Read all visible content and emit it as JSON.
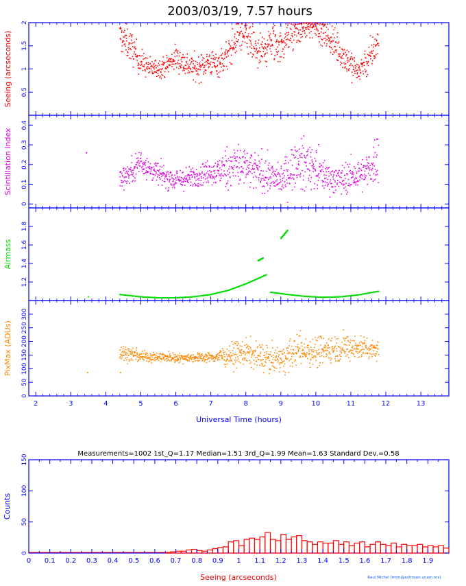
{
  "title": "2003/03/19, 7.57 hours",
  "credit": "Raul Michel (rmm@astrosen.unam.mx)",
  "colors": {
    "axis": "#0000ff",
    "seeing": "#ff0000",
    "scintillation": "#e000e0",
    "airmass": "#00dd00",
    "pixmax": "#ff8800",
    "histogram": "#ff0000"
  },
  "chart_data": [
    {
      "id": "seeing",
      "type": "scatter",
      "ylabel": "Seeing (arcseconds)",
      "ylim": [
        0,
        2
      ],
      "yticks": [
        0.5,
        1,
        1.5,
        2
      ],
      "xlim": [
        1.8,
        13.8
      ],
      "x_note": "Universal Time (hours), shared axis",
      "envelope": [
        {
          "x": 4.4,
          "y": 1.7,
          "s": 0.25
        },
        {
          "x": 4.7,
          "y": 1.5,
          "s": 0.25
        },
        {
          "x": 5.0,
          "y": 1.15,
          "s": 0.2
        },
        {
          "x": 5.3,
          "y": 1.0,
          "s": 0.15
        },
        {
          "x": 5.7,
          "y": 1.05,
          "s": 0.15
        },
        {
          "x": 6.0,
          "y": 1.25,
          "s": 0.2
        },
        {
          "x": 6.3,
          "y": 1.1,
          "s": 0.2
        },
        {
          "x": 6.6,
          "y": 1.0,
          "s": 0.2
        },
        {
          "x": 6.9,
          "y": 1.15,
          "s": 0.2
        },
        {
          "x": 7.2,
          "y": 1.1,
          "s": 0.2
        },
        {
          "x": 7.5,
          "y": 1.3,
          "s": 0.25
        },
        {
          "x": 7.8,
          "y": 1.75,
          "s": 0.25
        },
        {
          "x": 8.1,
          "y": 1.6,
          "s": 0.3
        },
        {
          "x": 8.4,
          "y": 1.3,
          "s": 0.3
        },
        {
          "x": 8.7,
          "y": 1.55,
          "s": 0.3
        },
        {
          "x": 9.0,
          "y": 1.5,
          "s": 0.3
        },
        {
          "x": 9.2,
          "y": 1.7,
          "s": 0.25
        },
        {
          "x": 9.6,
          "y": 1.85,
          "s": 0.2
        },
        {
          "x": 10.0,
          "y": 1.95,
          "s": 0.15
        },
        {
          "x": 10.3,
          "y": 1.75,
          "s": 0.25
        },
        {
          "x": 10.6,
          "y": 1.45,
          "s": 0.25
        },
        {
          "x": 10.9,
          "y": 1.2,
          "s": 0.25
        },
        {
          "x": 11.2,
          "y": 0.95,
          "s": 0.2
        },
        {
          "x": 11.5,
          "y": 1.2,
          "s": 0.25
        },
        {
          "x": 11.8,
          "y": 1.6,
          "s": 0.25
        }
      ],
      "n_points": 1002
    },
    {
      "id": "scintillation",
      "type": "scatter",
      "ylabel": "Scintillation Index",
      "ylim": [
        -0.02,
        0.45
      ],
      "yticks": [
        0,
        0.1,
        0.2,
        0.3,
        0.4
      ],
      "xlim": [
        1.8,
        13.8
      ],
      "isolated_points": [
        {
          "x": 3.45,
          "y": 0.26
        }
      ],
      "envelope": [
        {
          "x": 4.4,
          "y": 0.13,
          "s": 0.04
        },
        {
          "x": 4.7,
          "y": 0.16,
          "s": 0.04
        },
        {
          "x": 5.0,
          "y": 0.22,
          "s": 0.06
        },
        {
          "x": 5.3,
          "y": 0.17,
          "s": 0.04
        },
        {
          "x": 5.7,
          "y": 0.14,
          "s": 0.04
        },
        {
          "x": 6.0,
          "y": 0.12,
          "s": 0.04
        },
        {
          "x": 6.4,
          "y": 0.13,
          "s": 0.04
        },
        {
          "x": 6.8,
          "y": 0.16,
          "s": 0.04
        },
        {
          "x": 7.2,
          "y": 0.16,
          "s": 0.05
        },
        {
          "x": 7.5,
          "y": 0.19,
          "s": 0.08
        },
        {
          "x": 7.8,
          "y": 0.2,
          "s": 0.09
        },
        {
          "x": 8.1,
          "y": 0.17,
          "s": 0.07
        },
        {
          "x": 8.4,
          "y": 0.16,
          "s": 0.07
        },
        {
          "x": 8.7,
          "y": 0.14,
          "s": 0.06
        },
        {
          "x": 9.0,
          "y": 0.12,
          "s": 0.05
        },
        {
          "x": 9.4,
          "y": 0.2,
          "s": 0.09
        },
        {
          "x": 9.8,
          "y": 0.2,
          "s": 0.09
        },
        {
          "x": 10.2,
          "y": 0.15,
          "s": 0.06
        },
        {
          "x": 10.6,
          "y": 0.12,
          "s": 0.05
        },
        {
          "x": 11.0,
          "y": 0.14,
          "s": 0.06
        },
        {
          "x": 11.4,
          "y": 0.15,
          "s": 0.06
        },
        {
          "x": 11.8,
          "y": 0.25,
          "s": 0.1
        }
      ],
      "n_points": 1002
    },
    {
      "id": "airmass",
      "type": "line",
      "ylabel": "Airmass",
      "ylim": [
        1,
        2
      ],
      "yticks": [
        1.2,
        1.4,
        1.6,
        1.8
      ],
      "xlim": [
        1.8,
        13.8
      ],
      "isolated_points": [
        {
          "x": 3.5,
          "y": 1.04
        }
      ],
      "segments": [
        {
          "x": [
            4.4,
            5.0,
            5.5,
            6.0,
            6.5,
            7.0,
            7.5,
            8.0,
            8.6
          ],
          "y": [
            1.065,
            1.04,
            1.03,
            1.03,
            1.04,
            1.065,
            1.11,
            1.18,
            1.28
          ]
        },
        {
          "x": [
            8.35,
            8.5
          ],
          "y": [
            1.43,
            1.46
          ]
        },
        {
          "x": [
            9.0,
            9.2
          ],
          "y": [
            1.67,
            1.76
          ]
        },
        {
          "x": [
            8.7,
            9.2,
            9.7,
            10.2,
            10.7,
            11.2,
            11.8
          ],
          "y": [
            1.09,
            1.065,
            1.045,
            1.035,
            1.04,
            1.06,
            1.1
          ]
        }
      ]
    },
    {
      "id": "pixmax",
      "type": "scatter",
      "ylabel": "PixMax (ADUs)",
      "xlabel": "Universal Time (hours)",
      "ylim": [
        0,
        350
      ],
      "yticks": [
        0,
        50,
        100,
        150,
        200,
        250,
        300
      ],
      "xlim": [
        1.8,
        13.8
      ],
      "xticks": [
        2,
        3,
        4,
        5,
        6,
        7,
        8,
        9,
        10,
        11,
        12,
        13
      ],
      "isolated_points": [
        {
          "x": 3.48,
          "y": 85
        },
        {
          "x": 4.42,
          "y": 85
        }
      ],
      "envelope": [
        {
          "x": 4.4,
          "y": 160,
          "s": 25
        },
        {
          "x": 5.0,
          "y": 145,
          "s": 15
        },
        {
          "x": 6.0,
          "y": 140,
          "s": 12
        },
        {
          "x": 7.0,
          "y": 142,
          "s": 12
        },
        {
          "x": 7.6,
          "y": 150,
          "s": 30
        },
        {
          "x": 8.0,
          "y": 160,
          "s": 35
        },
        {
          "x": 8.5,
          "y": 140,
          "s": 35
        },
        {
          "x": 9.0,
          "y": 130,
          "s": 35
        },
        {
          "x": 9.5,
          "y": 170,
          "s": 40
        },
        {
          "x": 10.0,
          "y": 165,
          "s": 40
        },
        {
          "x": 10.5,
          "y": 175,
          "s": 35
        },
        {
          "x": 11.0,
          "y": 180,
          "s": 35
        },
        {
          "x": 11.5,
          "y": 175,
          "s": 30
        },
        {
          "x": 11.8,
          "y": 170,
          "s": 25
        }
      ],
      "n_points": 1002
    },
    {
      "id": "histogram",
      "type": "bar",
      "stats": "Measurements=1002   1st_Q=1.17   Median=1.51   3rd_Q=1.99   Mean=1.63   Standard Dev.=0.58",
      "xlabel": "Seeing (arcseconds)",
      "ylabel": "Counts",
      "xlim": [
        0,
        2
      ],
      "ylim": [
        0,
        150
      ],
      "yticks": [
        0,
        50,
        100,
        150
      ],
      "xticks": [
        "0",
        "0.1",
        "0.2",
        "0.3",
        "0.4",
        "0.5",
        "0.6",
        "0.7",
        "0.8",
        "0.9",
        "1",
        "1.1",
        "1.2",
        "1.3",
        "1.4",
        "1.5",
        "1.6",
        "1.7",
        "1.8",
        "1.9"
      ],
      "bin_width": 0.025,
      "bin_start": 0.65,
      "values": [
        1,
        2,
        3,
        3,
        5,
        6,
        4,
        3,
        5,
        7,
        9,
        10,
        18,
        20,
        12,
        22,
        24,
        22,
        26,
        33,
        22,
        20,
        30,
        22,
        26,
        28,
        20,
        18,
        14,
        18,
        16,
        16,
        20,
        14,
        18,
        12,
        16,
        18,
        10,
        14,
        18,
        14,
        12,
        16,
        10,
        14,
        12,
        12,
        14,
        10,
        12,
        10,
        12,
        8,
        12,
        10,
        12,
        10,
        10,
        12,
        10,
        10,
        14,
        12
      ]
    }
  ]
}
